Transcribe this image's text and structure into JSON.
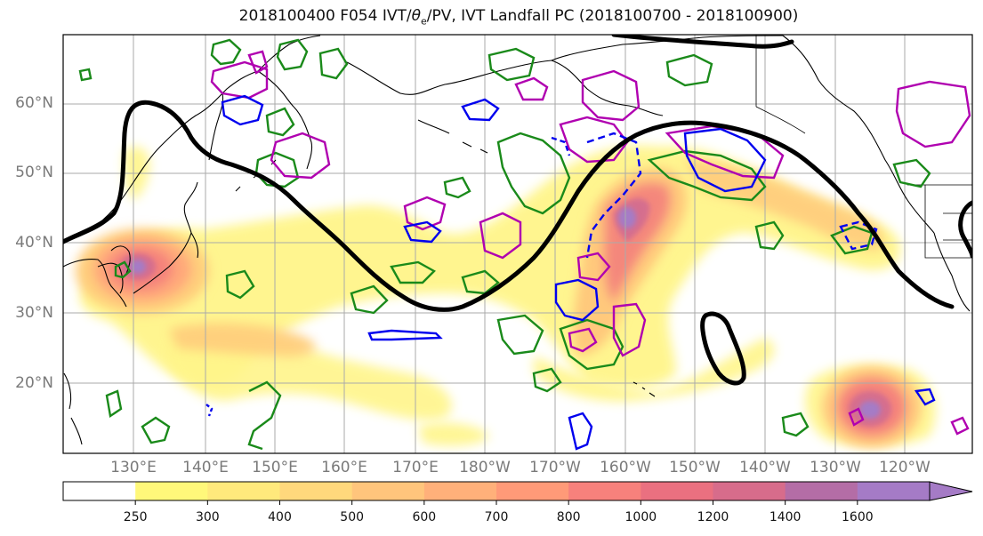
{
  "title_prefix": "2018100400 F054 IVT/",
  "title_theta": "θ",
  "title_theta_sub": "e",
  "title_suffix": "/PV, IVT Landfall PC (2018100700 - 2018100900)",
  "lat_labels": [
    "60°N",
    "50°N",
    "40°N",
    "30°N",
    "20°N"
  ],
  "lon_labels": [
    "130°E",
    "140°E",
    "150°E",
    "160°E",
    "170°E",
    "180°W",
    "170°W",
    "160°W",
    "150°W",
    "140°W",
    "130°W",
    "120°W"
  ],
  "colorbar": {
    "ticks": [
      "250",
      "300",
      "400",
      "500",
      "600",
      "700",
      "800",
      "1000",
      "1200",
      "1400",
      "1600"
    ],
    "colors": [
      "#ffffff",
      "#fff87a",
      "#ffe97c",
      "#ffd87c",
      "#ffc57c",
      "#ffb07a",
      "#ff9a78",
      "#f7817c",
      "#ea7080",
      "#d76c8b",
      "#b46da6",
      "#a57bc6"
    ]
  },
  "contour_colors": {
    "theta_e": "#000000",
    "pv_positive": "#1a8a1a",
    "pv_alt": "#b000b0",
    "pv_negative": "#0000ee"
  },
  "colors": {
    "coast": "#000000",
    "grid": "#aaaaaa",
    "label": "#7a7a7a"
  }
}
